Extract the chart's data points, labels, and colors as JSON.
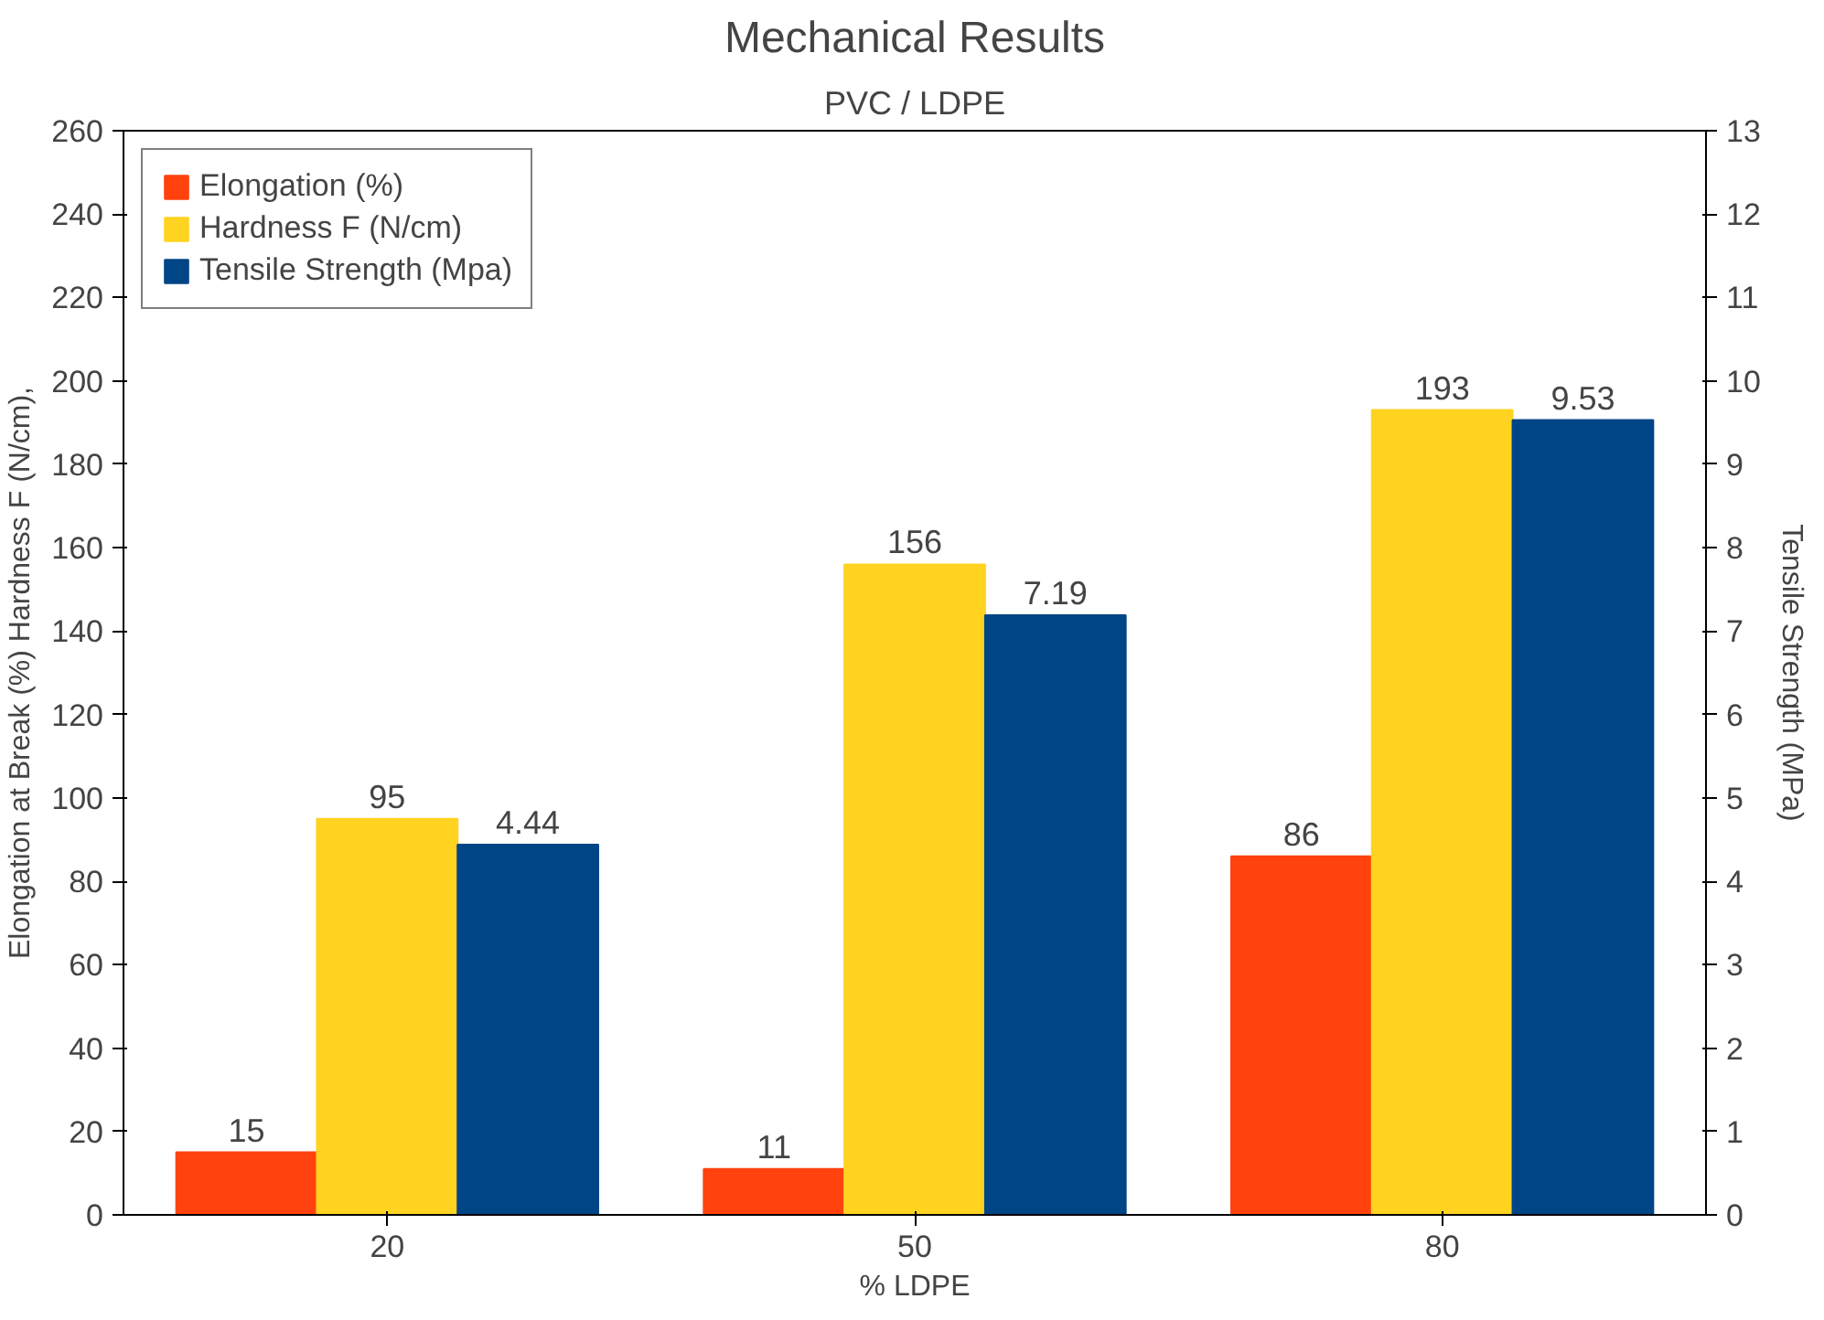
{
  "chart_data": {
    "type": "bar",
    "title": "Mechanical Results",
    "subtitle": "PVC / LDPE",
    "xlabel": "% LDPE",
    "ylabel": "Elongation at Break (%) Hardness F (N/cm),",
    "y2label": "Tensile Strength (MPa)",
    "categories": [
      "20",
      "50",
      "80"
    ],
    "series": [
      {
        "name": "Elongation (%)",
        "color": "#ff420e",
        "values": [
          15,
          11,
          86
        ]
      },
      {
        "name": "Hardness F (N/cm)",
        "color": "#ffd320",
        "values": [
          95,
          156,
          193
        ]
      },
      {
        "name": "Tensile Strength (Mpa)",
        "color": "#004586",
        "values": [
          4.44,
          7.19,
          9.53
        ],
        "axis": "y2"
      }
    ],
    "ylim": [
      0,
      260
    ],
    "yticks": [
      0,
      20,
      40,
      60,
      80,
      100,
      120,
      140,
      160,
      180,
      200,
      220,
      240,
      260
    ],
    "y2lim": [
      0,
      13
    ],
    "y2ticks": [
      0,
      1,
      2,
      3,
      4,
      5,
      6,
      7,
      8,
      9,
      10,
      11,
      12,
      13
    ],
    "data_labels": true,
    "legend": "top left",
    "grid": false
  }
}
